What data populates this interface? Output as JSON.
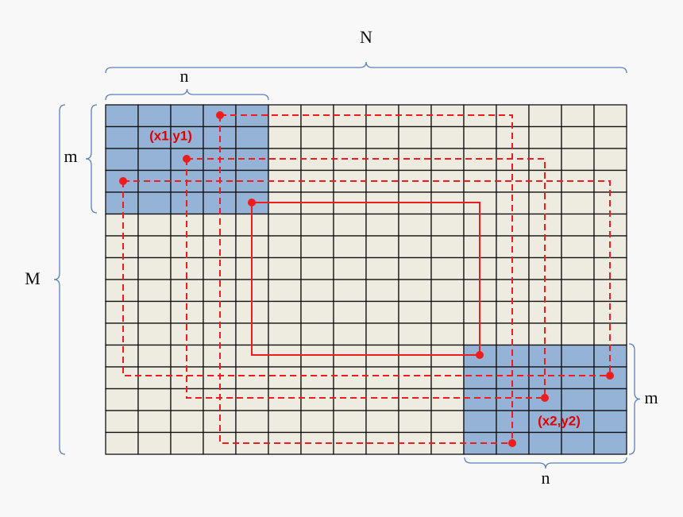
{
  "labels": {
    "N": "N",
    "n_top": "n",
    "m_left": "m",
    "M": "M",
    "point1": "(x1,y1)",
    "point2": "(x2,y2)",
    "m_right": "m",
    "n_bottom": "n"
  }
}
